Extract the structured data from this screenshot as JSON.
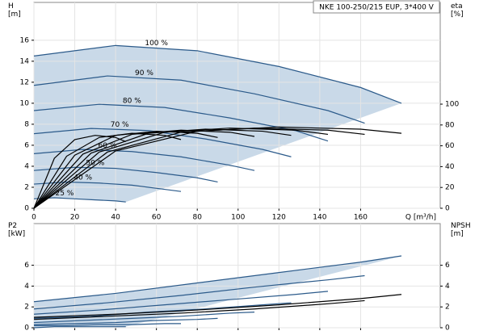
{
  "chart_data": [
    {
      "type": "line",
      "title": "NKE 100-250/215 EUP, 3*400 V",
      "ylabel": "H\n[m]",
      "y2label": "eta\n[%]",
      "xlabel": "Q [m³/h]",
      "xlim": [
        0,
        199
      ],
      "xticks": [
        0,
        20,
        40,
        60,
        80,
        100,
        120,
        140,
        160
      ],
      "ylim": [
        0,
        19.6
      ],
      "yticks": [
        0,
        2,
        4,
        6,
        8,
        10,
        12,
        14,
        16
      ],
      "y2lim": [
        0,
        197.7
      ],
      "y2ticks": [
        0,
        20,
        40,
        60,
        80,
        100
      ],
      "grid": true,
      "series": [
        {
          "name": "100 %",
          "color": "#2b5a8a",
          "x": [
            0,
            40,
            80,
            120,
            160,
            180
          ],
          "values": [
            14.5,
            15.5,
            15.0,
            13.5,
            11.5,
            10.0
          ]
        },
        {
          "name": "90 %",
          "color": "#2b5a8a",
          "x": [
            0,
            36,
            72,
            108,
            144,
            162
          ],
          "values": [
            11.7,
            12.6,
            12.2,
            10.9,
            9.3,
            8.1
          ]
        },
        {
          "name": "80 %",
          "color": "#2b5a8a",
          "x": [
            0,
            32,
            64,
            96,
            128,
            144
          ],
          "values": [
            9.3,
            9.9,
            9.6,
            8.6,
            7.4,
            6.4
          ]
        },
        {
          "name": "70 %",
          "color": "#2b5a8a",
          "x": [
            0,
            28,
            56,
            84,
            112,
            126
          ],
          "values": [
            7.1,
            7.6,
            7.4,
            6.6,
            5.6,
            4.9
          ]
        },
        {
          "name": "60 %",
          "color": "#2b5a8a",
          "x": [
            0,
            24,
            48,
            72,
            96,
            108
          ],
          "values": [
            5.2,
            5.6,
            5.4,
            4.9,
            4.1,
            3.6
          ]
        },
        {
          "name": "50 %",
          "color": "#2b5a8a",
          "x": [
            0,
            20,
            40,
            60,
            80,
            90
          ],
          "values": [
            3.6,
            3.9,
            3.8,
            3.4,
            2.9,
            2.5
          ]
        },
        {
          "name": "40 %",
          "color": "#2b5a8a",
          "x": [
            0,
            16,
            32,
            48,
            64,
            72
          ],
          "values": [
            2.3,
            2.5,
            2.4,
            2.2,
            1.8,
            1.6
          ]
        },
        {
          "name": "25 %",
          "color": "#2b5a8a",
          "x": [
            0,
            10,
            20,
            30,
            40,
            45
          ],
          "values": [
            0.9,
            1.0,
            0.9,
            0.8,
            0.7,
            0.6
          ]
        },
        {
          "axis": "y2",
          "color": "#000000",
          "x": [
            0,
            40,
            80,
            120,
            160,
            180
          ],
          "values": [
            0,
            55,
            74,
            78,
            76,
            72
          ]
        },
        {
          "axis": "y2",
          "color": "#000000",
          "x": [
            0,
            36,
            72,
            108,
            144,
            162
          ],
          "values": [
            0,
            54,
            73,
            77,
            75,
            71
          ]
        },
        {
          "axis": "y2",
          "color": "#000000",
          "x": [
            0,
            32,
            64,
            96,
            128,
            144
          ],
          "values": [
            0,
            54,
            73,
            77,
            75,
            71
          ]
        },
        {
          "axis": "y2",
          "color": "#000000",
          "x": [
            0,
            28,
            56,
            84,
            112,
            126
          ],
          "values": [
            0,
            53,
            72,
            76,
            74,
            70
          ]
        },
        {
          "axis": "y2",
          "color": "#000000",
          "x": [
            0,
            24,
            48,
            72,
            96,
            108
          ],
          "values": [
            0,
            52,
            71,
            75,
            73,
            69
          ]
        },
        {
          "axis": "y2",
          "color": "#000000",
          "x": [
            0,
            20,
            40,
            60,
            80,
            90
          ],
          "values": [
            0,
            51,
            70,
            74,
            72,
            68
          ]
        },
        {
          "axis": "y2",
          "color": "#000000",
          "x": [
            0,
            16,
            32,
            48,
            64,
            72
          ],
          "values": [
            0,
            50,
            68,
            72,
            70,
            66
          ]
        },
        {
          "axis": "y2",
          "color": "#000000",
          "x": [
            0,
            10,
            20,
            30,
            40,
            45
          ],
          "values": [
            0,
            48,
            66,
            70,
            68,
            64
          ]
        }
      ]
    },
    {
      "type": "line",
      "ylabel": "P2\n[kW]",
      "y2label": "NPSH\n[m]",
      "xlim": [
        0,
        199
      ],
      "xticks": [
        0,
        20,
        40,
        60,
        80,
        100,
        120,
        140,
        160
      ],
      "ylim": [
        0,
        10
      ],
      "yticks": [
        0,
        2,
        4,
        6
      ],
      "y2lim": [
        0,
        10
      ],
      "y2ticks": [
        0,
        2,
        4,
        6
      ],
      "grid": true,
      "series": [
        {
          "color": "#2b5a8a",
          "x": [
            0,
            40,
            80,
            120,
            160,
            180
          ],
          "values": [
            2.5,
            3.3,
            4.3,
            5.3,
            6.3,
            6.9
          ]
        },
        {
          "color": "#2b5a8a",
          "x": [
            0,
            36,
            72,
            108,
            144,
            162
          ],
          "values": [
            1.8,
            2.4,
            3.1,
            3.9,
            4.6,
            5.0
          ]
        },
        {
          "color": "#2b5a8a",
          "x": [
            0,
            32,
            64,
            96,
            128,
            144
          ],
          "values": [
            1.3,
            1.7,
            2.2,
            2.7,
            3.2,
            3.5
          ]
        },
        {
          "color": "#2b5a8a",
          "x": [
            0,
            28,
            56,
            84,
            112,
            126
          ],
          "values": [
            0.9,
            1.1,
            1.5,
            1.8,
            2.2,
            2.4
          ]
        },
        {
          "color": "#2b5a8a",
          "x": [
            0,
            24,
            48,
            72,
            96,
            108
          ],
          "values": [
            0.5,
            0.7,
            0.9,
            1.1,
            1.4,
            1.5
          ]
        },
        {
          "color": "#2b5a8a",
          "x": [
            0,
            20,
            40,
            60,
            80,
            90
          ],
          "values": [
            0.3,
            0.4,
            0.5,
            0.7,
            0.8,
            0.9
          ]
        },
        {
          "color": "#2b5a8a",
          "x": [
            0,
            16,
            32,
            48,
            64,
            72
          ],
          "values": [
            0.2,
            0.2,
            0.3,
            0.3,
            0.4,
            0.4
          ]
        },
        {
          "color": "#2b5a8a",
          "x": [
            0,
            10,
            20,
            30,
            40,
            45
          ],
          "values": [
            0,
            0.1,
            0.1,
            0.1,
            0.1,
            0.1
          ]
        },
        {
          "axis": "y2",
          "color": "#000000",
          "x": [
            0,
            40,
            80,
            120,
            160,
            180
          ],
          "values": [
            1.0,
            1.3,
            1.7,
            2.2,
            2.8,
            3.2
          ]
        },
        {
          "axis": "y2",
          "color": "#000000",
          "x": [
            0,
            36,
            72,
            108,
            144,
            162
          ],
          "values": [
            0.8,
            1.1,
            1.4,
            1.8,
            2.3,
            2.6
          ]
        }
      ]
    }
  ]
}
